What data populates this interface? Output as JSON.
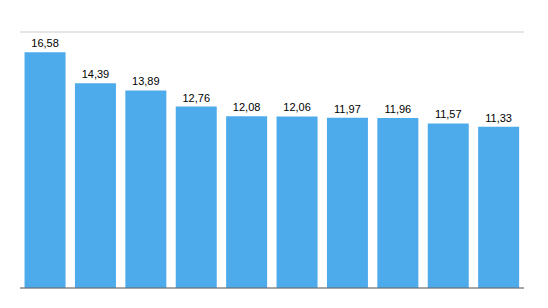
{
  "chart_data": {
    "type": "bar",
    "categories": [
      null,
      null,
      null,
      null,
      null,
      null,
      null,
      null,
      null,
      null
    ],
    "values": [
      16.58,
      14.39,
      13.89,
      12.76,
      12.08,
      12.06,
      11.97,
      11.96,
      11.57,
      11.33
    ],
    "value_labels": [
      "16,58",
      "14,39",
      "13,89",
      "12,76",
      "12,08",
      "12,06",
      "11,97",
      "11,96",
      "11,57",
      "11,33"
    ],
    "color": "#4DAAEB",
    "ylim": [
      0,
      18
    ],
    "yticks": [
      0,
      2,
      4,
      6,
      8,
      10,
      12,
      14,
      16,
      18
    ],
    "grid": true,
    "data_labels": true,
    "tick_labels": false
  }
}
